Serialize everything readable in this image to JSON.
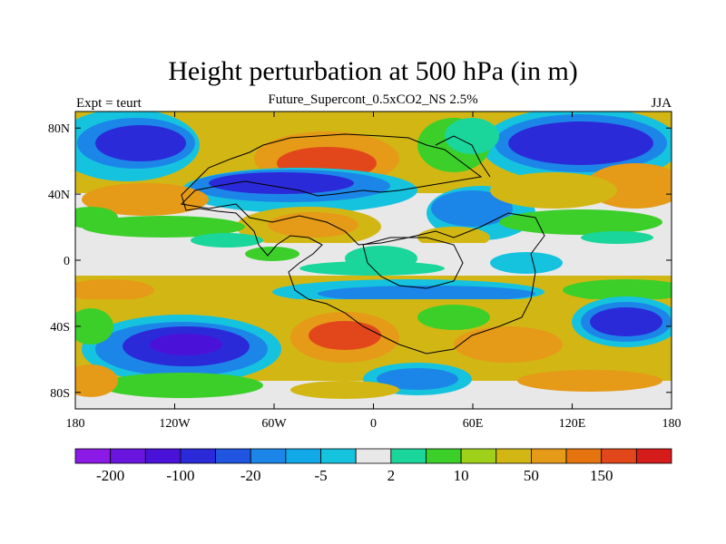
{
  "title": "Height perturbation at 500 hPa (in m)",
  "left_string": "Expt = teurt",
  "center_string": "Future_Supercont_0.5xCO2_NS 2.5%",
  "right_string": "JJA",
  "lat_ticks": [
    {
      "label": "80N",
      "value": 80
    },
    {
      "label": "40N",
      "value": 40
    },
    {
      "label": "0",
      "value": 0
    },
    {
      "label": "40S",
      "value": -40
    },
    {
      "label": "80S",
      "value": -80
    }
  ],
  "lon_ticks": [
    {
      "label": "180",
      "value": -180
    },
    {
      "label": "120W",
      "value": -120
    },
    {
      "label": "60W",
      "value": -60
    },
    {
      "label": "0",
      "value": 0
    },
    {
      "label": "60E",
      "value": 60
    },
    {
      "label": "120E",
      "value": 120
    },
    {
      "label": "180",
      "value": 180
    }
  ],
  "colorbar": {
    "colors": [
      "#8b1ae6",
      "#6a14e0",
      "#4a12d8",
      "#2b2ad8",
      "#1f55e0",
      "#1c86e8",
      "#12a9e8",
      "#15c3df",
      "#e8e8e8",
      "#1ad69a",
      "#3ccf2a",
      "#9fd11a",
      "#d2b714",
      "#e59a18",
      "#e5740f",
      "#e2471c",
      "#d61b1b"
    ],
    "labels": [
      {
        "text": "-200",
        "boundary": 1
      },
      {
        "text": "-100",
        "boundary": 3
      },
      {
        "text": "-20",
        "boundary": 5
      },
      {
        "text": "-5",
        "boundary": 7
      },
      {
        "text": "2",
        "boundary": 9
      },
      {
        "text": "10",
        "boundary": 11
      },
      {
        "text": "50",
        "boundary": 13
      },
      {
        "text": "150",
        "boundary": 15
      }
    ]
  },
  "legend_colors": {
    "strong_negative": "#3a2bd8",
    "negative": "#1f55e0",
    "weak_negative": "#15c3df",
    "near_zero": "#e8e8e8",
    "weak_positive": "#1ad69a",
    "positive": "#d2b714",
    "strong_positive": "#e2471c"
  }
}
